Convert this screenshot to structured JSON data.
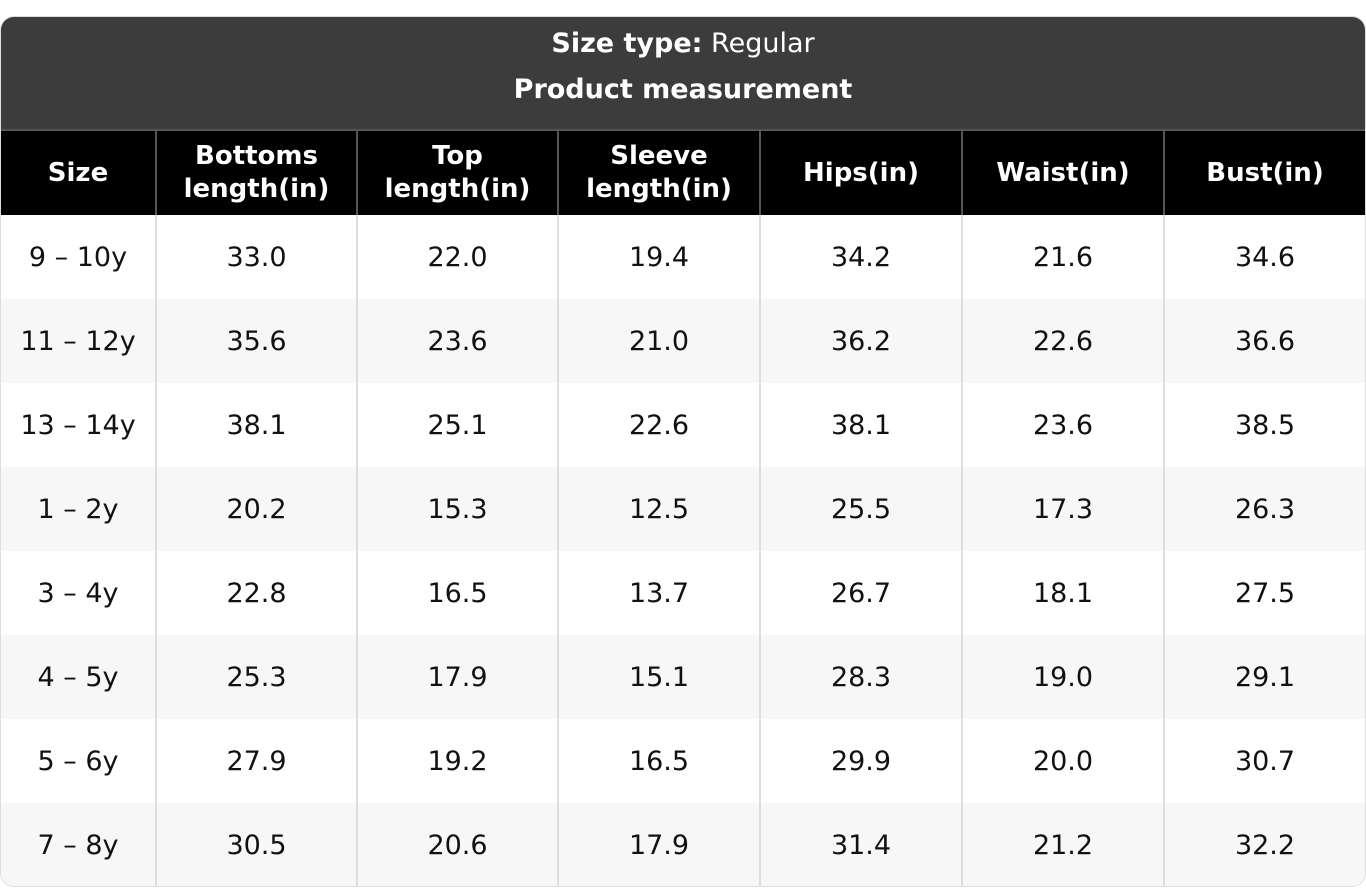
{
  "header": {
    "label": "Size type:",
    "value": "Regular",
    "subtitle": "Product measurement"
  },
  "table": {
    "columns": [
      "Size",
      "Bottoms length(in)",
      "Top length(in)",
      "Sleeve length(in)",
      "Hips(in)",
      "Waist(in)",
      "Bust(in)"
    ],
    "rows": [
      [
        "9 – 10y",
        "33.0",
        "22.0",
        "19.4",
        "34.2",
        "21.6",
        "34.6"
      ],
      [
        "11 – 12y",
        "35.6",
        "23.6",
        "21.0",
        "36.2",
        "22.6",
        "36.6"
      ],
      [
        "13 – 14y",
        "38.1",
        "25.1",
        "22.6",
        "38.1",
        "23.6",
        "38.5"
      ],
      [
        "1 – 2y",
        "20.2",
        "15.3",
        "12.5",
        "25.5",
        "17.3",
        "26.3"
      ],
      [
        "3 – 4y",
        "22.8",
        "16.5",
        "13.7",
        "26.7",
        "18.1",
        "27.5"
      ],
      [
        "4 – 5y",
        "25.3",
        "17.9",
        "15.1",
        "28.3",
        "19.0",
        "29.1"
      ],
      [
        "5 – 6y",
        "27.9",
        "19.2",
        "16.5",
        "29.9",
        "20.0",
        "30.7"
      ],
      [
        "7 – 8y",
        "30.5",
        "20.6",
        "17.9",
        "31.4",
        "21.2",
        "32.2"
      ]
    ]
  }
}
